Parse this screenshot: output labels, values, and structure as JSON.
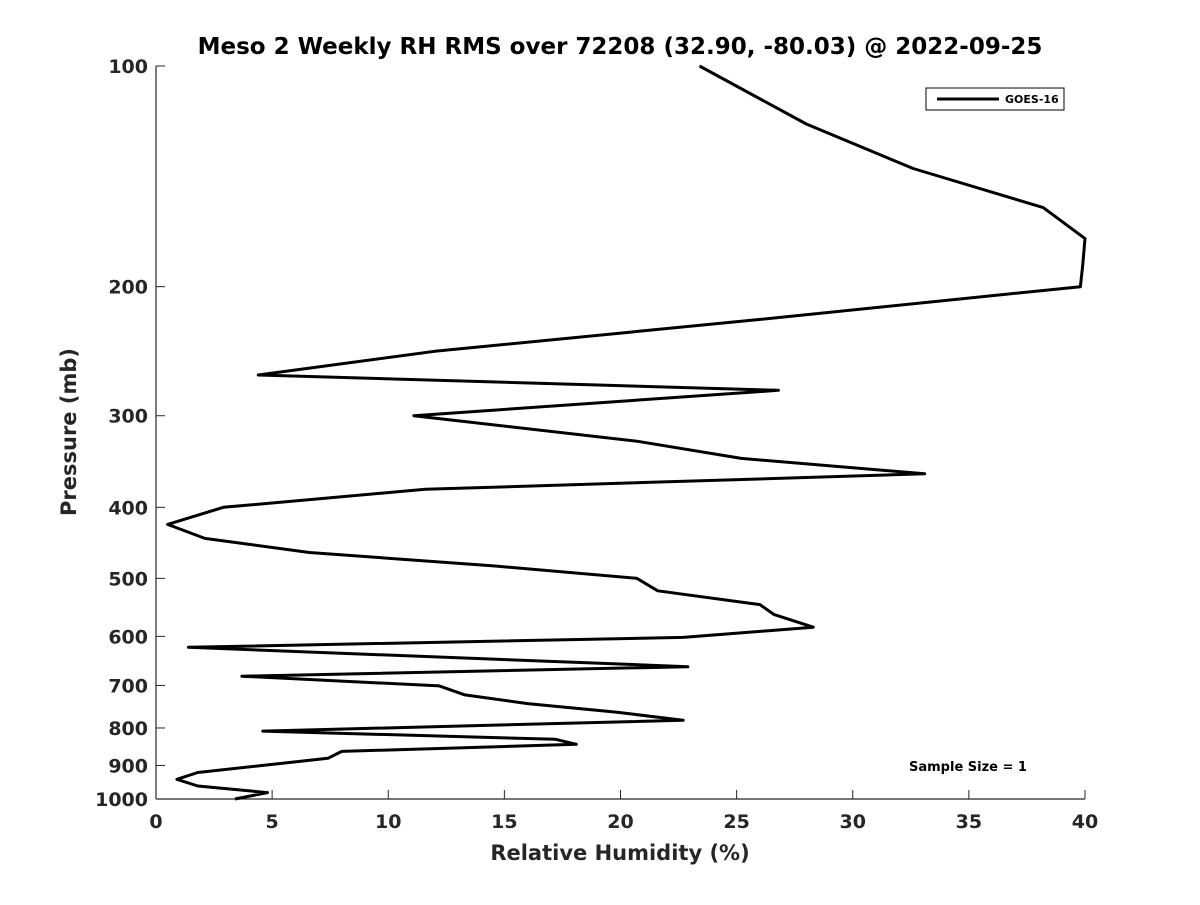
{
  "chart_data": {
    "type": "line",
    "title": "Meso 2 Weekly RH RMS over 72208 (32.90, -80.03) @ 2022-09-25",
    "xlabel": "Relative Humidity (%)",
    "ylabel": "Pressure (mb)",
    "xlim": [
      0,
      40
    ],
    "ylim": [
      100,
      1000
    ],
    "yscale": "log",
    "y_reversed": true,
    "xticks": [
      0,
      5,
      10,
      15,
      20,
      25,
      30,
      35,
      40
    ],
    "xtick_labels": [
      "0",
      "5",
      "10",
      "15",
      "20",
      "25",
      "30",
      "35",
      "40"
    ],
    "yticks": [
      100,
      200,
      300,
      400,
      500,
      600,
      700,
      800,
      900,
      1000
    ],
    "ytick_labels": [
      "100",
      "200",
      "300",
      "400",
      "500",
      "600",
      "700",
      "800",
      "900",
      "1000"
    ],
    "grid": false,
    "legend_position": "top-right",
    "annotation": "Sample Size = 1",
    "line_color": "#000000",
    "series": [
      {
        "name": "GOES-16",
        "x": [
          23.4,
          28.0,
          32.6,
          38.2,
          40.0,
          39.9,
          39.8,
          25.8,
          12.0,
          4.4,
          26.8,
          11.1,
          20.7,
          25.2,
          33.1,
          11.6,
          2.9,
          0.5,
          2.1,
          6.6,
          14.6,
          20.7,
          21.6,
          26.0,
          26.6,
          28.3,
          22.7,
          1.4,
          22.9,
          3.7,
          12.2,
          13.3,
          16.0,
          19.8,
          22.7,
          4.6,
          17.2,
          18.1,
          8.0,
          7.4,
          1.8,
          0.9,
          1.8,
          4.8,
          3.4
        ],
        "y": [
          100,
          120,
          138,
          156,
          172,
          187,
          200,
          222,
          245,
          264,
          277,
          300,
          325,
          343,
          360,
          378,
          400,
          422,
          441,
          461,
          481,
          500,
          520,
          543,
          560,
          583,
          602,
          621,
          660,
          680,
          701,
          721,
          741,
          761,
          781,
          808,
          829,
          842,
          861,
          880,
          920,
          940,
          960,
          980,
          1000
        ]
      }
    ]
  }
}
